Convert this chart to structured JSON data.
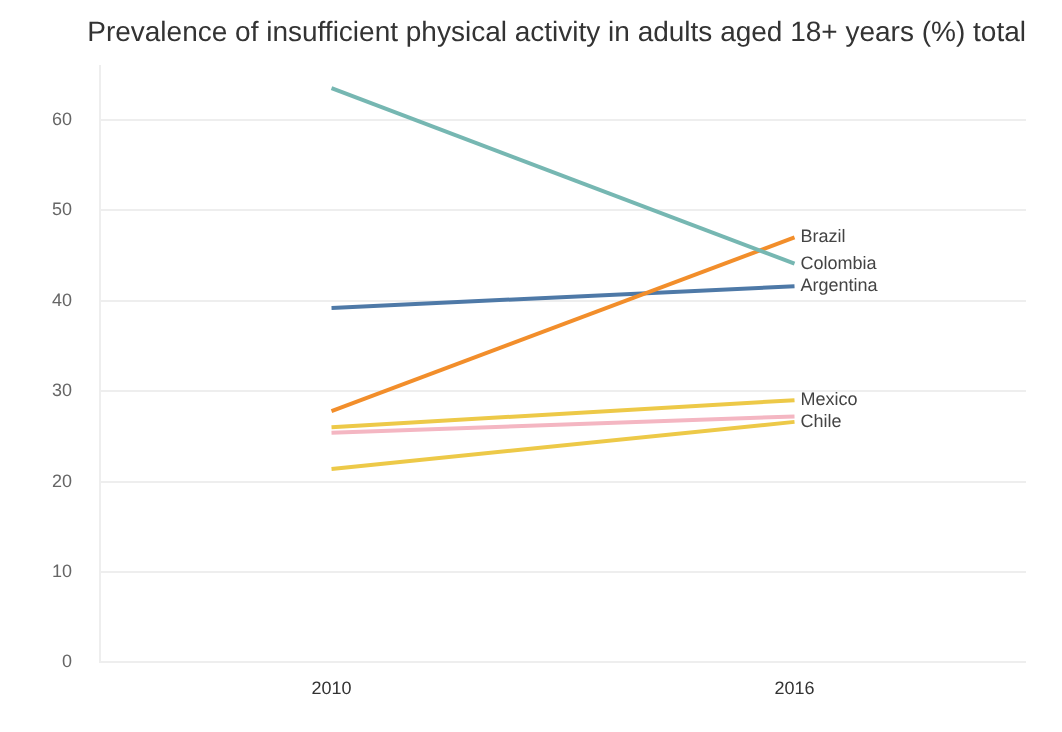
{
  "chart_data": {
    "type": "line",
    "title": "Prevalence of insufficient physical activity in adults aged 18+ years (%) total",
    "categories": [
      "2010",
      "2016"
    ],
    "series": [
      {
        "name": "Colombia",
        "color": "#76b7b2",
        "values": [
          63.5,
          44.1
        ]
      },
      {
        "name": "Brazil",
        "color": "#f28e2b",
        "values": [
          27.8,
          47
        ]
      },
      {
        "name": "Argentina",
        "color": "#4e79a7",
        "values": [
          39.2,
          41.6
        ]
      },
      {
        "name": "Mexico",
        "color": "#edc948",
        "values": [
          26,
          29
        ]
      },
      {
        "color": "#f4b6c2",
        "values": [
          25.4,
          27.2
        ]
      },
      {
        "name": "Chile",
        "color": "#edc948",
        "values": [
          21.4,
          26.6
        ]
      }
    ],
    "ylim": [
      0,
      66
    ],
    "yticks": [
      0,
      10,
      20,
      30,
      40,
      50,
      60
    ],
    "grid": "y",
    "legend": false,
    "marker": "none",
    "line_style": "solid"
  }
}
